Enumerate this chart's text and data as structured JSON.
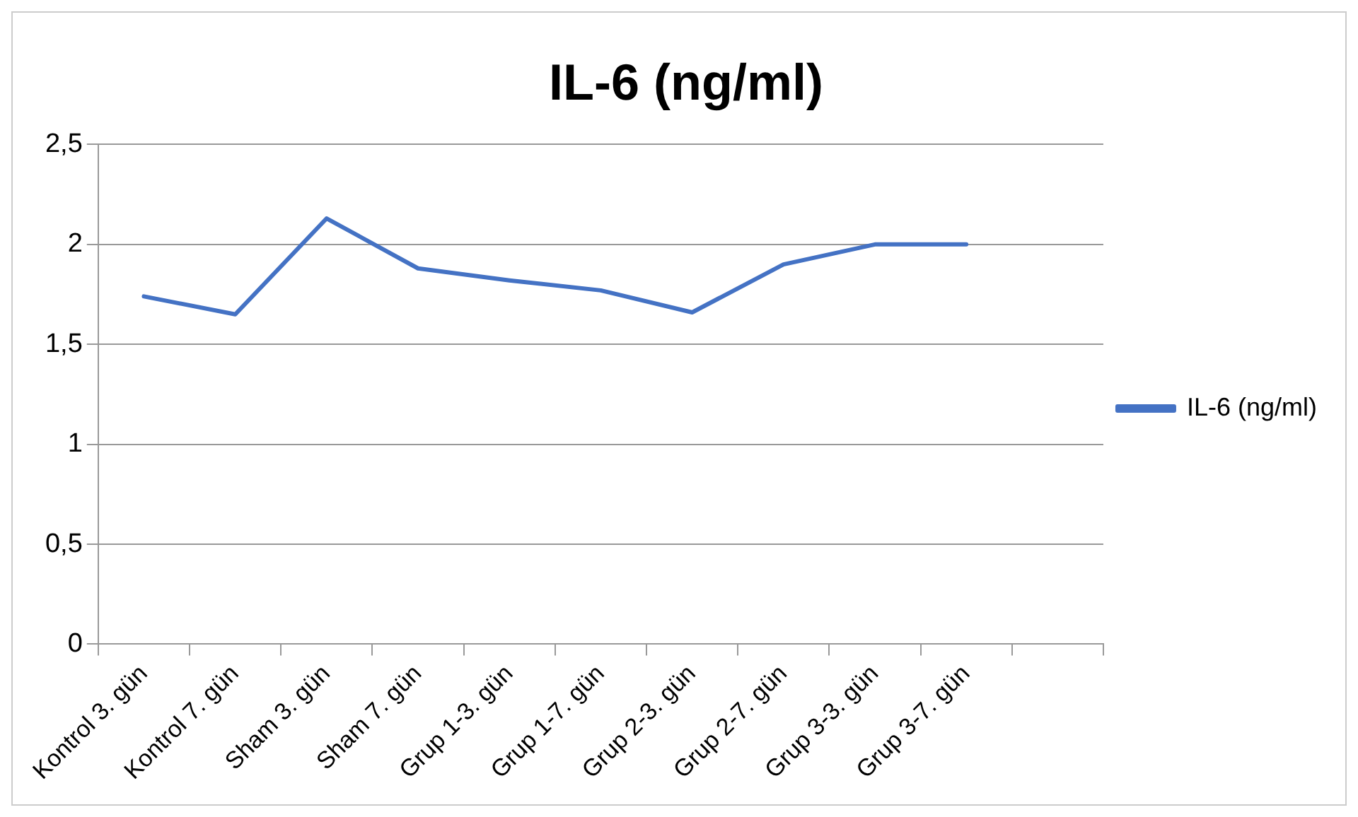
{
  "chart_data": {
    "type": "line",
    "title": "IL-6 (ng/ml)",
    "categories": [
      "Kontrol 3. gün",
      "Kontrol 7. gün",
      "Sham 3. gün",
      "Sham 7. gün",
      "Grup 1-3. gün",
      "Grup 1-7. gün",
      "Grup 2-3. gün",
      "Grup 2-7. gün",
      "Grup 3-3. gün",
      "Grup 3-7. gün",
      null
    ],
    "series": [
      {
        "name": "IL-6 (ng/ml)",
        "color": "#4472c4",
        "values": [
          1.74,
          1.65,
          2.13,
          1.88,
          1.82,
          1.77,
          1.66,
          1.9,
          2.0,
          2.0,
          null
        ]
      }
    ],
    "ylim": [
      0,
      2.5
    ],
    "yticks": [
      {
        "value": 0,
        "label": "0"
      },
      {
        "value": 0.5,
        "label": "0,5"
      },
      {
        "value": 1,
        "label": "1"
      },
      {
        "value": 1.5,
        "label": "1,5"
      },
      {
        "value": 2,
        "label": "2"
      },
      {
        "value": 2.5,
        "label": "2,5"
      }
    ],
    "grid": "y",
    "legend": "right",
    "marker": "none",
    "line_style": "solid"
  }
}
